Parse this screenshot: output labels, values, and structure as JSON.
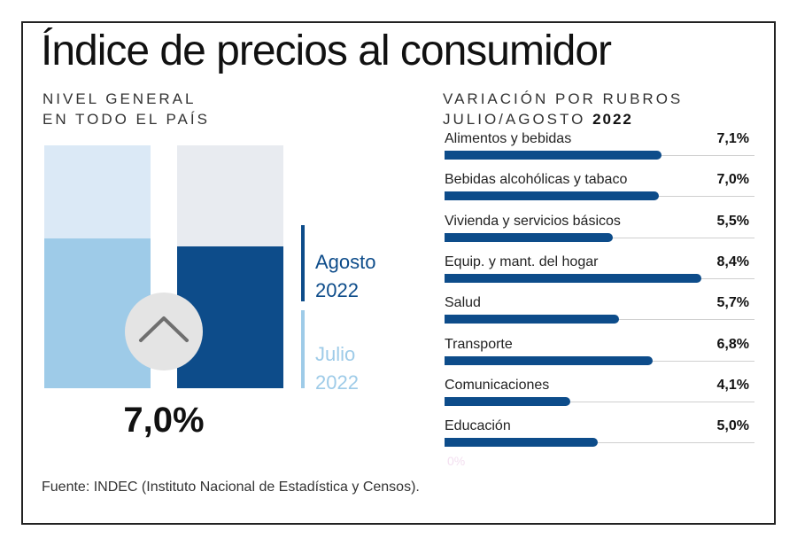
{
  "title": "Índice de precios al consumidor",
  "left_subtitle": [
    "NIVEL GENERAL",
    "EN TODO EL PAÍS"
  ],
  "right_subtitle": {
    "line1": "VARIACIÓN POR RUBROS",
    "line2_prefix": "JULIO/AGOSTO",
    "line2_year": "2022"
  },
  "legend": {
    "agosto": {
      "month": "Agosto",
      "year": "2022"
    },
    "julio": {
      "month": "Julio",
      "year": "2022"
    }
  },
  "headline_value": "7,0%",
  "zero_label": "0%",
  "source": "Fuente: INDEC (Instituto Nacional de Estadística y Censos).",
  "colors": {
    "dark_blue": "#0d4c8a",
    "light_blue": "#9ecbe8",
    "pale_blue": "#dbe9f6",
    "pale_gray": "#e8ebf0",
    "circle": "#e4e4e4"
  },
  "chart_data": [
    {
      "type": "bar",
      "title": "Nivel general en todo el país",
      "categories": [
        "Julio 2022",
        "Agosto 2022"
      ],
      "values": [
        7.4,
        7.0
      ],
      "ylim": [
        0,
        12
      ],
      "annotation": "7,0%"
    },
    {
      "type": "bar",
      "orientation": "horizontal",
      "title": "Variación por rubros julio/agosto 2022",
      "categories": [
        "Alimentos y bebidas",
        "Bebidas alcohólicas y tabaco",
        "Vivienda y servicios básicos",
        "Equip. y mant. del hogar",
        "Salud",
        "Transporte",
        "Comunicaciones",
        "Educación"
      ],
      "values": [
        7.1,
        7.0,
        5.5,
        8.4,
        5.7,
        6.8,
        4.1,
        5.0
      ],
      "labels": [
        "7,1%",
        "7,0%",
        "5,5%",
        "8,4%",
        "5,7%",
        "6,8%",
        "4,1%",
        "5,0%"
      ],
      "xlim": [
        0,
        10
      ]
    }
  ]
}
